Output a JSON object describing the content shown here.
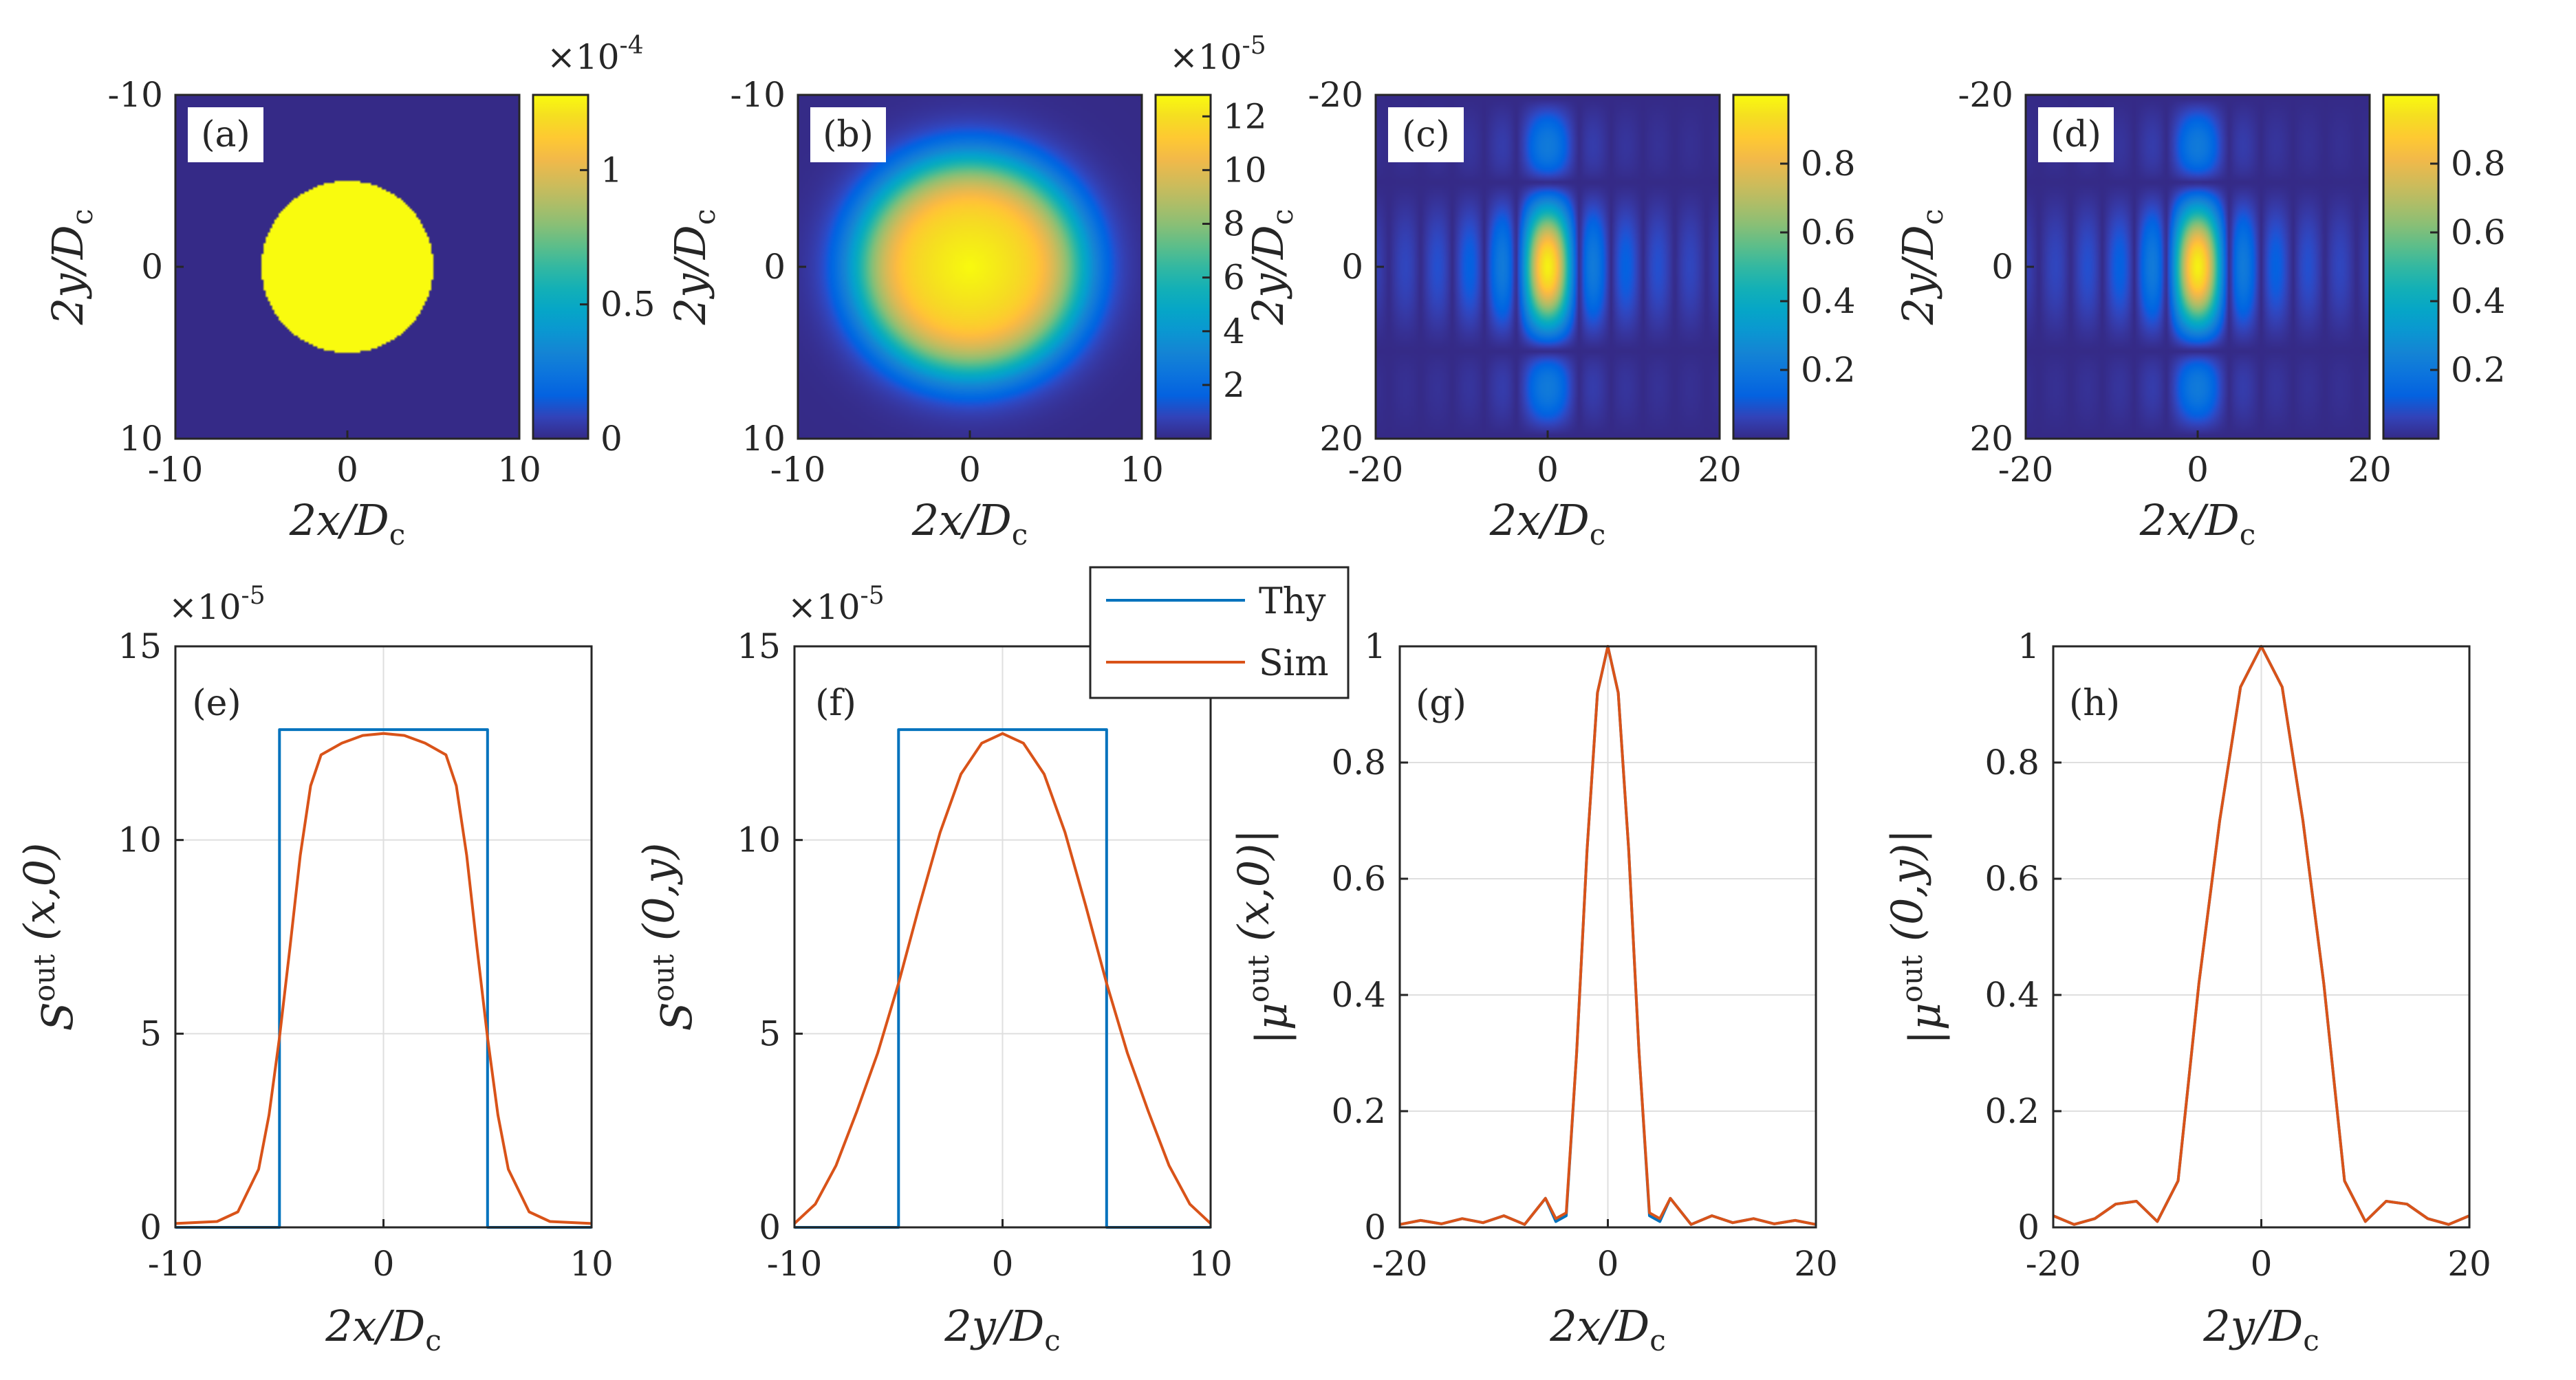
{
  "figure": {
    "background": "#ffffff",
    "axis_color": "#262626",
    "grid_color": "#dfdfdf"
  },
  "colormap": "parula",
  "legend": {
    "entries": [
      {
        "name": "Thy",
        "color": "#0072bd"
      },
      {
        "name": "Sim",
        "color": "#d95319"
      }
    ]
  },
  "chart_data": [
    {
      "type": "heatmap",
      "panel": "(a)",
      "xlabel": "2x/D_c",
      "ylabel": "2y/D_c",
      "xlim": [
        -10,
        10
      ],
      "ylim": [
        -10,
        10
      ],
      "y_reversed": true,
      "xticks": [
        "-10",
        "0",
        "10"
      ],
      "yticks": [
        "-10",
        "0",
        "10"
      ],
      "pattern": "disk",
      "disk_radius": 5,
      "colorbar": {
        "range": [
          0,
          1.28
        ],
        "exponent": "×10^-4",
        "ticks": [
          0,
          0.5,
          1
        ],
        "tick_labels": [
          "0",
          "0.5",
          "1"
        ]
      }
    },
    {
      "type": "heatmap",
      "panel": "(b)",
      "xlabel": "2x/D_c",
      "ylabel": "2y/D_c",
      "xlim": [
        -10,
        10
      ],
      "ylim": [
        -10,
        10
      ],
      "y_reversed": true,
      "xticks": [
        "-10",
        "0",
        "10"
      ],
      "yticks": [
        "-10",
        "0",
        "10"
      ],
      "pattern": "blurred_disk",
      "disk_radius": 5,
      "colorbar": {
        "range": [
          0,
          12.8
        ],
        "exponent": "×10^-5",
        "ticks": [
          2,
          4,
          6,
          8,
          10,
          12
        ],
        "tick_labels": [
          "2",
          "4",
          "6",
          "8",
          "10",
          "12"
        ]
      }
    },
    {
      "type": "heatmap",
      "panel": "(c)",
      "xlabel": "2x/D_c",
      "ylabel": "2y/D_c",
      "xlim": [
        -20,
        20
      ],
      "ylim": [
        -20,
        20
      ],
      "y_reversed": true,
      "xticks": [
        "-20",
        "0",
        "20"
      ],
      "yticks": [
        "-20",
        "0",
        "20"
      ],
      "pattern": "coherence",
      "peak": 1,
      "colorbar": {
        "range": [
          0,
          1
        ],
        "exponent": "",
        "ticks": [
          0.2,
          0.4,
          0.6,
          0.8
        ],
        "tick_labels": [
          "0.2",
          "0.4",
          "0.6",
          "0.8"
        ]
      }
    },
    {
      "type": "heatmap",
      "panel": "(d)",
      "xlabel": "2x/D_c",
      "ylabel": "2y/D_c",
      "xlim": [
        -20,
        20
      ],
      "ylim": [
        -20,
        20
      ],
      "y_reversed": true,
      "xticks": [
        "-20",
        "0",
        "20"
      ],
      "yticks": [
        "-20",
        "0",
        "20"
      ],
      "pattern": "coherence",
      "peak": 1,
      "colorbar": {
        "range": [
          0,
          1
        ],
        "exponent": "",
        "ticks": [
          0.2,
          0.4,
          0.6,
          0.8
        ],
        "tick_labels": [
          "0.2",
          "0.4",
          "0.6",
          "0.8"
        ]
      }
    },
    {
      "type": "line",
      "panel": "(e)",
      "xlabel": "2x/D_c",
      "ylabel": "S^out (x,0)",
      "xlim": [
        -10,
        10
      ],
      "ylim": [
        0,
        15
      ],
      "grid": true,
      "y_exponent": "×10^-5",
      "xticks": [
        -10,
        0,
        10
      ],
      "yticks": [
        0,
        5,
        10,
        15
      ],
      "series": [
        {
          "name": "Thy",
          "x": [
            -10,
            -5,
            -5,
            5,
            5,
            10
          ],
          "y": [
            0,
            0,
            12.85,
            12.85,
            0,
            0
          ]
        },
        {
          "name": "Sim",
          "x": [
            -10,
            -8,
            -7,
            -6,
            -5.5,
            -5,
            -4.5,
            -4,
            -3.5,
            -3,
            -2,
            -1,
            0,
            1,
            2,
            3,
            3.5,
            4,
            4.5,
            5,
            5.5,
            6,
            7,
            8,
            10
          ],
          "y": [
            0.1,
            0.15,
            0.4,
            1.5,
            2.9,
            4.9,
            7.2,
            9.6,
            11.4,
            12.2,
            12.5,
            12.7,
            12.75,
            12.7,
            12.5,
            12.2,
            11.4,
            9.6,
            7.2,
            4.9,
            2.9,
            1.5,
            0.4,
            0.15,
            0.1
          ]
        }
      ]
    },
    {
      "type": "line",
      "panel": "(f)",
      "xlabel": "2y/D_c",
      "ylabel": "S^out (0,y)",
      "xlim": [
        -10,
        10
      ],
      "ylim": [
        0,
        15
      ],
      "grid": true,
      "y_exponent": "×10^-5",
      "xticks": [
        -10,
        0,
        10
      ],
      "yticks": [
        0,
        5,
        10,
        15
      ],
      "series": [
        {
          "name": "Thy",
          "x": [
            -10,
            -5,
            -5,
            5,
            5,
            10
          ],
          "y": [
            0,
            0,
            12.85,
            12.85,
            0,
            0
          ]
        },
        {
          "name": "Sim",
          "x": [
            -10,
            -9,
            -8,
            -7,
            -6,
            -5,
            -4,
            -3,
            -2,
            -1,
            0,
            1,
            2,
            3,
            4,
            5,
            6,
            7,
            8,
            9,
            10
          ],
          "y": [
            0.1,
            0.6,
            1.6,
            3.0,
            4.5,
            6.3,
            8.3,
            10.2,
            11.7,
            12.5,
            12.75,
            12.5,
            11.7,
            10.2,
            8.3,
            6.3,
            4.5,
            3.0,
            1.6,
            0.6,
            0.1
          ]
        }
      ]
    },
    {
      "type": "line",
      "panel": "(g)",
      "xlabel": "2x/D_c",
      "ylabel": "|μ^out (x,0)|",
      "xlim": [
        -20,
        20
      ],
      "ylim": [
        0,
        1
      ],
      "grid": true,
      "xticks": [
        -20,
        0,
        20
      ],
      "yticks": [
        0,
        0.2,
        0.4,
        0.6,
        0.8,
        1
      ],
      "series": [
        {
          "name": "Thy",
          "x": [
            -20,
            -18,
            -16,
            -14,
            -12,
            -10,
            -8,
            -6,
            -5,
            -4,
            -3,
            -2,
            -1,
            0,
            1,
            2,
            3,
            4,
            5,
            6,
            8,
            10,
            12,
            14,
            16,
            18,
            20
          ],
          "y": [
            0.005,
            0.012,
            0.006,
            0.015,
            0.008,
            0.02,
            0.005,
            0.05,
            0.01,
            0.02,
            0.3,
            0.65,
            0.92,
            1.0,
            0.92,
            0.65,
            0.3,
            0.02,
            0.01,
            0.05,
            0.005,
            0.02,
            0.008,
            0.015,
            0.006,
            0.012,
            0.005
          ]
        },
        {
          "name": "Sim",
          "x": [
            -20,
            -18,
            -16,
            -14,
            -12,
            -10,
            -8,
            -6,
            -5,
            -4,
            -3,
            -2,
            -1,
            0,
            1,
            2,
            3,
            4,
            5,
            6,
            8,
            10,
            12,
            14,
            16,
            18,
            20
          ],
          "y": [
            0.005,
            0.012,
            0.006,
            0.015,
            0.008,
            0.02,
            0.005,
            0.05,
            0.015,
            0.025,
            0.3,
            0.65,
            0.92,
            1.0,
            0.92,
            0.65,
            0.3,
            0.025,
            0.015,
            0.05,
            0.005,
            0.02,
            0.008,
            0.015,
            0.006,
            0.012,
            0.005
          ]
        }
      ]
    },
    {
      "type": "line",
      "panel": "(h)",
      "xlabel": "2y/D_c",
      "ylabel": "|μ^out (0,y)|",
      "xlim": [
        -20,
        20
      ],
      "ylim": [
        0,
        1
      ],
      "grid": true,
      "xticks": [
        -20,
        0,
        20
      ],
      "yticks": [
        0,
        0.2,
        0.4,
        0.6,
        0.8,
        1
      ],
      "series": [
        {
          "name": "Thy",
          "x": [
            -20,
            -18,
            -16,
            -14,
            -12,
            -10,
            -8,
            -6,
            -4,
            -2,
            0,
            2,
            4,
            6,
            8,
            10,
            12,
            14,
            16,
            18,
            20
          ],
          "y": [
            0.02,
            0.005,
            0.015,
            0.04,
            0.045,
            0.01,
            0.08,
            0.42,
            0.7,
            0.93,
            1.0,
            0.93,
            0.7,
            0.42,
            0.08,
            0.01,
            0.045,
            0.04,
            0.015,
            0.005,
            0.02
          ]
        },
        {
          "name": "Sim",
          "x": [
            -20,
            -18,
            -16,
            -14,
            -12,
            -10,
            -8,
            -6,
            -4,
            -2,
            0,
            2,
            4,
            6,
            8,
            10,
            12,
            14,
            16,
            18,
            20
          ],
          "y": [
            0.02,
            0.005,
            0.015,
            0.04,
            0.045,
            0.01,
            0.08,
            0.42,
            0.7,
            0.93,
            1.0,
            0.93,
            0.7,
            0.42,
            0.08,
            0.01,
            0.045,
            0.04,
            0.015,
            0.005,
            0.02
          ]
        }
      ]
    }
  ]
}
